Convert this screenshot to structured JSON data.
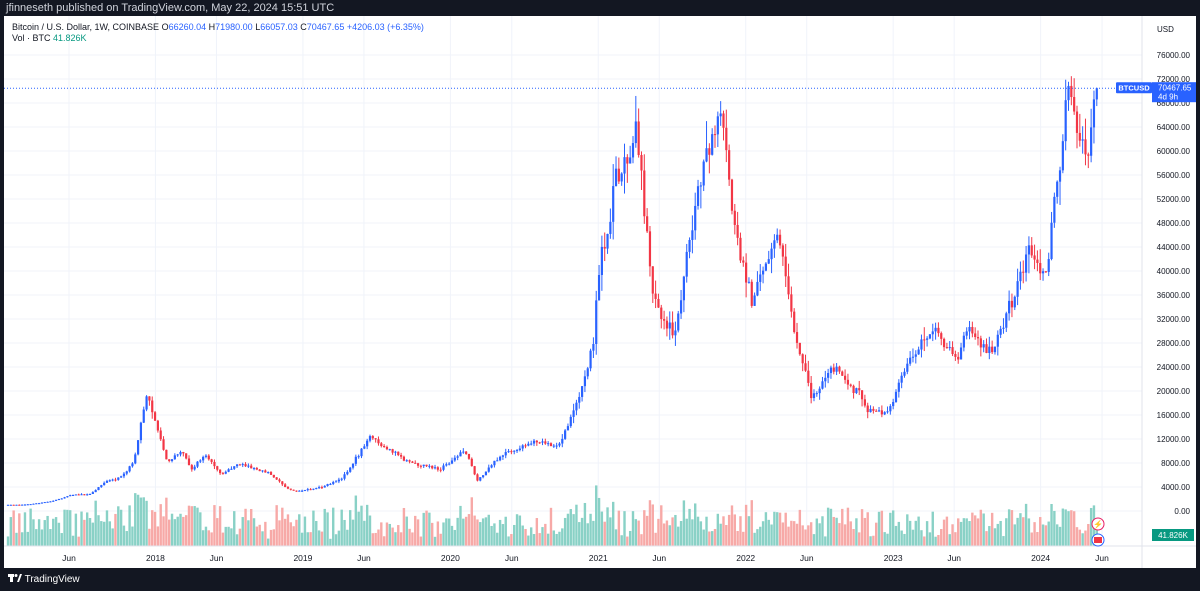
{
  "header": {
    "published": "jfinneseth published on TradingView.com, May 22, 2024 15:51 UTC"
  },
  "legend": {
    "symbol": "Bitcoin / U.S. Dollar, 1W, COINBASE",
    "o_label": "O",
    "o_value": "66260.04",
    "h_label": "H",
    "h_value": "71980.00",
    "l_label": "L",
    "l_value": "66057.03",
    "c_label": "C",
    "c_value": "70467.65",
    "change": "+4206.03 (+6.35%)",
    "vol_label": "Vol · BTC",
    "vol_value": "41.826K"
  },
  "price_axis": {
    "currency": "USD",
    "ticks": [
      "76000.00",
      "72000.00",
      "68000.00",
      "64000.00",
      "60000.00",
      "56000.00",
      "52000.00",
      "48000.00",
      "44000.00",
      "40000.00",
      "36000.00",
      "32000.00",
      "28000.00",
      "24000.00",
      "20000.00",
      "16000.00",
      "12000.00",
      "8000.00",
      "4000.00",
      "0.00"
    ],
    "last_symbol": "BTCUSD",
    "last_price": "70467.65",
    "countdown": "4d 9h",
    "volume_tag": "41.826K"
  },
  "time_axis": {
    "ticks": [
      "Jun",
      "2018",
      "Jun",
      "2019",
      "Jun",
      "2020",
      "Jun",
      "2021",
      "Jun",
      "2022",
      "Jun",
      "2023",
      "Jun",
      "2024",
      "Jun"
    ]
  },
  "footer": {
    "brand": "TradingView"
  },
  "colors": {
    "up": "#2962ff",
    "down": "#f23645",
    "vol_up": "#89d1c6",
    "vol_down": "#f7a9a7",
    "bg": "#ffffff",
    "dark": "#131722"
  },
  "chart_data": {
    "type": "candlestick",
    "title": "Bitcoin / U.S. Dollar, 1W, COINBASE",
    "interval": "1W",
    "ylim": [
      0,
      77000
    ],
    "anchors": [
      {
        "date": "2017-01-01",
        "price": 1000
      },
      {
        "date": "2017-03-01",
        "price": 1100
      },
      {
        "date": "2017-05-01",
        "price": 1700
      },
      {
        "date": "2017-06-15",
        "price": 2700
      },
      {
        "date": "2017-08-01",
        "price": 2800
      },
      {
        "date": "2017-09-01",
        "price": 4700
      },
      {
        "date": "2017-10-15",
        "price": 5700
      },
      {
        "date": "2017-11-15",
        "price": 8000
      },
      {
        "date": "2017-12-17",
        "price": 19500
      },
      {
        "date": "2018-01-15",
        "price": 13500
      },
      {
        "date": "2018-02-06",
        "price": 8000
      },
      {
        "date": "2018-03-10",
        "price": 10000
      },
      {
        "date": "2018-04-10",
        "price": 7000
      },
      {
        "date": "2018-05-10",
        "price": 9500
      },
      {
        "date": "2018-06-20",
        "price": 6200
      },
      {
        "date": "2018-08-01",
        "price": 7800
      },
      {
        "date": "2018-10-15",
        "price": 6400
      },
      {
        "date": "2018-11-25",
        "price": 4000
      },
      {
        "date": "2018-12-15",
        "price": 3300
      },
      {
        "date": "2019-02-15",
        "price": 3800
      },
      {
        "date": "2019-04-15",
        "price": 5300
      },
      {
        "date": "2019-06-26",
        "price": 12500
      },
      {
        "date": "2019-08-01",
        "price": 10500
      },
      {
        "date": "2019-10-01",
        "price": 8000
      },
      {
        "date": "2019-12-15",
        "price": 7000
      },
      {
        "date": "2020-02-12",
        "price": 10200
      },
      {
        "date": "2020-03-15",
        "price": 5000
      },
      {
        "date": "2020-05-15",
        "price": 9500
      },
      {
        "date": "2020-08-01",
        "price": 11500
      },
      {
        "date": "2020-10-01",
        "price": 11000
      },
      {
        "date": "2020-11-20",
        "price": 18500
      },
      {
        "date": "2020-12-27",
        "price": 28000
      },
      {
        "date": "2021-01-10",
        "price": 40000
      },
      {
        "date": "2021-02-21",
        "price": 55000
      },
      {
        "date": "2021-04-14",
        "price": 63000
      },
      {
        "date": "2021-05-20",
        "price": 37000
      },
      {
        "date": "2021-06-22",
        "price": 31000
      },
      {
        "date": "2021-07-20",
        "price": 30000
      },
      {
        "date": "2021-09-06",
        "price": 52000
      },
      {
        "date": "2021-10-20",
        "price": 63000
      },
      {
        "date": "2021-11-10",
        "price": 67000
      },
      {
        "date": "2021-12-05",
        "price": 49000
      },
      {
        "date": "2022-01-24",
        "price": 35000
      },
      {
        "date": "2022-03-28",
        "price": 47000
      },
      {
        "date": "2022-05-10",
        "price": 30000
      },
      {
        "date": "2022-06-18",
        "price": 19000
      },
      {
        "date": "2022-08-15",
        "price": 24000
      },
      {
        "date": "2022-10-15",
        "price": 19500
      },
      {
        "date": "2022-11-09",
        "price": 16500
      },
      {
        "date": "2022-12-30",
        "price": 16500
      },
      {
        "date": "2023-01-30",
        "price": 23000
      },
      {
        "date": "2023-03-20",
        "price": 28000
      },
      {
        "date": "2023-04-14",
        "price": 30500
      },
      {
        "date": "2023-06-15",
        "price": 25000
      },
      {
        "date": "2023-07-10",
        "price": 30500
      },
      {
        "date": "2023-09-10",
        "price": 26000
      },
      {
        "date": "2023-10-25",
        "price": 34500
      },
      {
        "date": "2023-12-10",
        "price": 43000
      },
      {
        "date": "2024-01-22",
        "price": 40000
      },
      {
        "date": "2024-02-28",
        "price": 60000
      },
      {
        "date": "2024-03-14",
        "price": 71000
      },
      {
        "date": "2024-04-17",
        "price": 62000
      },
      {
        "date": "2024-05-01",
        "price": 58000
      },
      {
        "date": "2024-05-15",
        "price": 66000
      },
      {
        "date": "2024-05-22",
        "price": 70467.65
      }
    ]
  }
}
